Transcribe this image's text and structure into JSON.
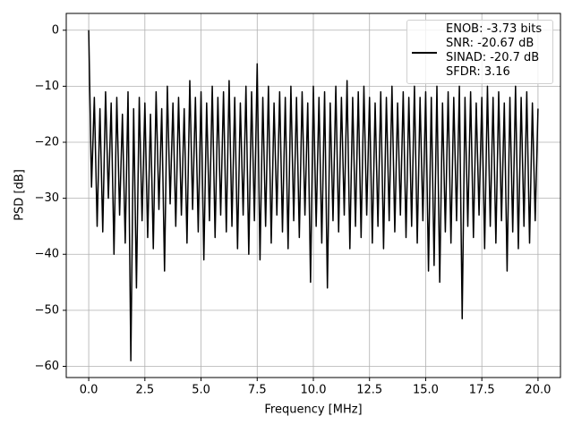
{
  "chart_data": {
    "type": "line",
    "xlabel": "Frequency [MHz]",
    "ylabel": "PSD [dB]",
    "xlim": [
      -1.0,
      21.0
    ],
    "ylim": [
      -62,
      3
    ],
    "xticks": [
      {
        "value": 0,
        "label": "0.0"
      },
      2.5,
      {
        "value": 5,
        "label": "5.0"
      },
      7.5,
      {
        "value": 10,
        "label": "10.0"
      },
      12.5,
      {
        "value": 15,
        "label": "15.0"
      },
      17.5,
      {
        "value": 20,
        "label": "20.0"
      }
    ],
    "yticks": [
      {
        "value": -60,
        "label": "−60"
      },
      {
        "value": -50,
        "label": "−50"
      },
      {
        "value": -40,
        "label": "−40"
      },
      {
        "value": -30,
        "label": "−30"
      },
      {
        "value": -20,
        "label": "−20"
      },
      {
        "value": -10,
        "label": "−10"
      },
      0
    ],
    "grid": true,
    "legend": "upper right",
    "x": [
      0,
      0.125,
      0.25,
      0.375,
      0.5,
      0.625,
      0.75,
      0.875,
      1,
      1.125,
      1.25,
      1.375,
      1.5,
      1.625,
      1.75,
      1.875,
      2,
      2.125,
      2.25,
      2.375,
      2.5,
      2.625,
      2.75,
      2.875,
      3,
      3.125,
      3.25,
      3.375,
      3.5,
      3.625,
      3.75,
      3.875,
      4,
      4.125,
      4.25,
      4.375,
      4.5,
      4.625,
      4.75,
      4.875,
      5,
      5.125,
      5.25,
      5.375,
      5.5,
      5.625,
      5.75,
      5.875,
      6,
      6.125,
      6.25,
      6.375,
      6.5,
      6.625,
      6.75,
      6.875,
      7,
      7.125,
      7.25,
      7.375,
      7.5,
      7.625,
      7.75,
      7.875,
      8,
      8.125,
      8.25,
      8.375,
      8.5,
      8.625,
      8.75,
      8.875,
      9,
      9.125,
      9.25,
      9.375,
      9.5,
      9.625,
      9.75,
      9.875,
      10,
      10.125,
      10.25,
      10.375,
      10.5,
      10.625,
      10.75,
      10.875,
      11,
      11.125,
      11.25,
      11.375,
      11.5,
      11.625,
      11.75,
      11.875,
      12,
      12.125,
      12.25,
      12.375,
      12.5,
      12.625,
      12.75,
      12.875,
      13,
      13.125,
      13.25,
      13.375,
      13.5,
      13.625,
      13.75,
      13.875,
      14,
      14.125,
      14.25,
      14.375,
      14.5,
      14.625,
      14.75,
      14.875,
      15,
      15.125,
      15.25,
      15.375,
      15.5,
      15.625,
      15.75,
      15.875,
      16,
      16.125,
      16.25,
      16.375,
      16.5,
      16.625,
      16.75,
      16.875,
      17,
      17.125,
      17.25,
      17.375,
      17.5,
      17.625,
      17.75,
      17.875,
      18,
      18.125,
      18.25,
      18.375,
      18.5,
      18.625,
      18.75,
      18.875,
      19,
      19.125,
      19.25,
      19.375,
      19.5,
      19.625,
      19.75,
      19.875,
      20
    ],
    "series": [
      {
        "name": "ENOB: -3.73 bits\nSNR: -20.67 dB\nSINAD: -20.7 dB\nSFDR: 3.16",
        "color": "#000000",
        "values": [
          0,
          -28,
          -12,
          -35,
          -14,
          -36,
          -11,
          -30,
          -13,
          -40,
          -12,
          -33,
          -15,
          -38,
          -11,
          -59,
          -14,
          -46,
          -12,
          -34,
          -13,
          -37,
          -15,
          -39,
          -11,
          -32,
          -14,
          -43,
          -10,
          -31,
          -13,
          -35,
          -12,
          -33,
          -14,
          -38,
          -9,
          -32,
          -12,
          -36,
          -11,
          -41,
          -13,
          -34,
          -10,
          -37,
          -12,
          -33,
          -11,
          -36,
          -9,
          -35,
          -12,
          -39,
          -13,
          -33,
          -10,
          -40,
          -11,
          -34,
          -6,
          -41,
          -12,
          -35,
          -10,
          -38,
          -13,
          -33,
          -11,
          -36,
          -12,
          -39,
          -10,
          -34,
          -12,
          -37,
          -11,
          -33,
          -13,
          -45,
          -10,
          -35,
          -12,
          -38,
          -11,
          -46,
          -13,
          -34,
          -10,
          -36,
          -12,
          -33,
          -9,
          -39,
          -12,
          -35,
          -11,
          -37,
          -10,
          -33,
          -12,
          -38,
          -13,
          -35,
          -11,
          -39,
          -12,
          -34,
          -10,
          -36,
          -13,
          -33,
          -11,
          -37,
          -12,
          -35,
          -10,
          -38,
          -12,
          -34,
          -11,
          -43,
          -12,
          -42,
          -10,
          -45,
          -13,
          -36,
          -11,
          -38,
          -12,
          -34,
          -10,
          -51.5,
          -12,
          -35,
          -11,
          -37,
          -13,
          -33,
          -12,
          -39,
          -10,
          -35,
          -12,
          -38,
          -11,
          -34,
          -13,
          -43,
          -12,
          -36,
          -10,
          -39,
          -12,
          -35,
          -11,
          -38,
          -13,
          -34,
          -14
        ]
      }
    ]
  }
}
